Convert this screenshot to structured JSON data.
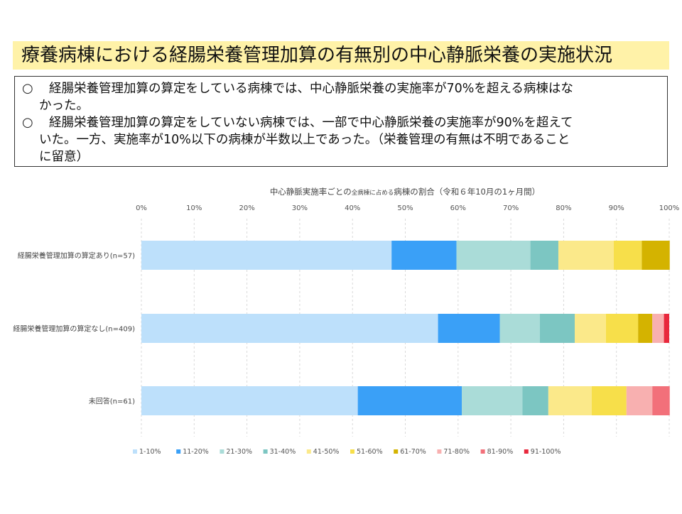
{
  "page": {
    "title": "療養病棟における経腸栄養管理加算の有無別の中心静脈栄養の実施状況"
  },
  "notes": {
    "mark": "○",
    "item1_line1": "経腸栄養管理加算の算定をしている病棟では、中心静脈栄養の実施率が70%を超える病棟はな",
    "item1_line2": "かった。",
    "item2_line1": "経腸栄養管理加算の算定をしていない病棟では、一部で中心静脈栄養の実施率が90%を超えて",
    "item2_line2": "いた。一方、実施率が10%以下の病棟が半数以上であった。（栄養管理の有無は不明であること",
    "item2_line3": "に留意）"
  },
  "chart_data": {
    "type": "bar",
    "orientation": "horizontal",
    "stacked": true,
    "percent": true,
    "title_main": "中心静脈実施率ごとの",
    "title_small": "全病棟に占める",
    "title_end": "病棟の割合（令和６年10月の1ヶ月間）",
    "categories": [
      "経腸栄養管理加算の算定あり(n=57)",
      "経腸栄養管理加算の算定なし(n=409)",
      "未回答(n=61)"
    ],
    "x_ticks": [
      "0%",
      "10%",
      "20%",
      "30%",
      "40%",
      "50%",
      "60%",
      "70%",
      "80%",
      "90%",
      "100%"
    ],
    "xlim": [
      0,
      100
    ],
    "grid": "vertical dashed",
    "legend_position": "bottom",
    "series": [
      {
        "name": "1-10%",
        "color": "#bde0fb",
        "values": [
          47.4,
          56.2,
          41.0
        ]
      },
      {
        "name": "11-20%",
        "color": "#3aa0f7",
        "values": [
          12.3,
          11.7,
          19.7
        ]
      },
      {
        "name": "21-30%",
        "color": "#aadcd8",
        "values": [
          14.0,
          7.6,
          11.5
        ]
      },
      {
        "name": "31-40%",
        "color": "#7cc6c2",
        "values": [
          5.3,
          6.6,
          4.9
        ]
      },
      {
        "name": "41-50%",
        "color": "#fbe98a",
        "values": [
          10.5,
          5.9,
          8.2
        ]
      },
      {
        "name": "51-60%",
        "color": "#f7df4a",
        "values": [
          5.3,
          6.1,
          6.6
        ]
      },
      {
        "name": "61-70%",
        "color": "#d4b300",
        "values": [
          5.3,
          2.7,
          0
        ]
      },
      {
        "name": "71-80%",
        "color": "#f8b0b0",
        "values": [
          0,
          2.2,
          4.9
        ]
      },
      {
        "name": "81-90%",
        "color": "#f2707a",
        "values": [
          0,
          0,
          3.3
        ]
      },
      {
        "name": "91-100%",
        "color": "#e8283c",
        "values": [
          0,
          1.0,
          0
        ]
      }
    ]
  }
}
